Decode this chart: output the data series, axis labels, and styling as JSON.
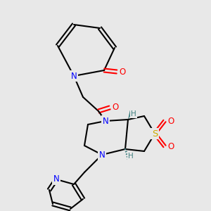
{
  "background_color": "#e8e8e8",
  "fig_width": 3.0,
  "fig_height": 3.0,
  "dpi": 100,
  "atom_colors": {
    "N": "#0000ff",
    "O": "#ff0000",
    "S": "#ccaa00",
    "C": "#000000",
    "H": "#408080"
  },
  "font_size_atom": 8.5,
  "font_size_h": 7.5
}
